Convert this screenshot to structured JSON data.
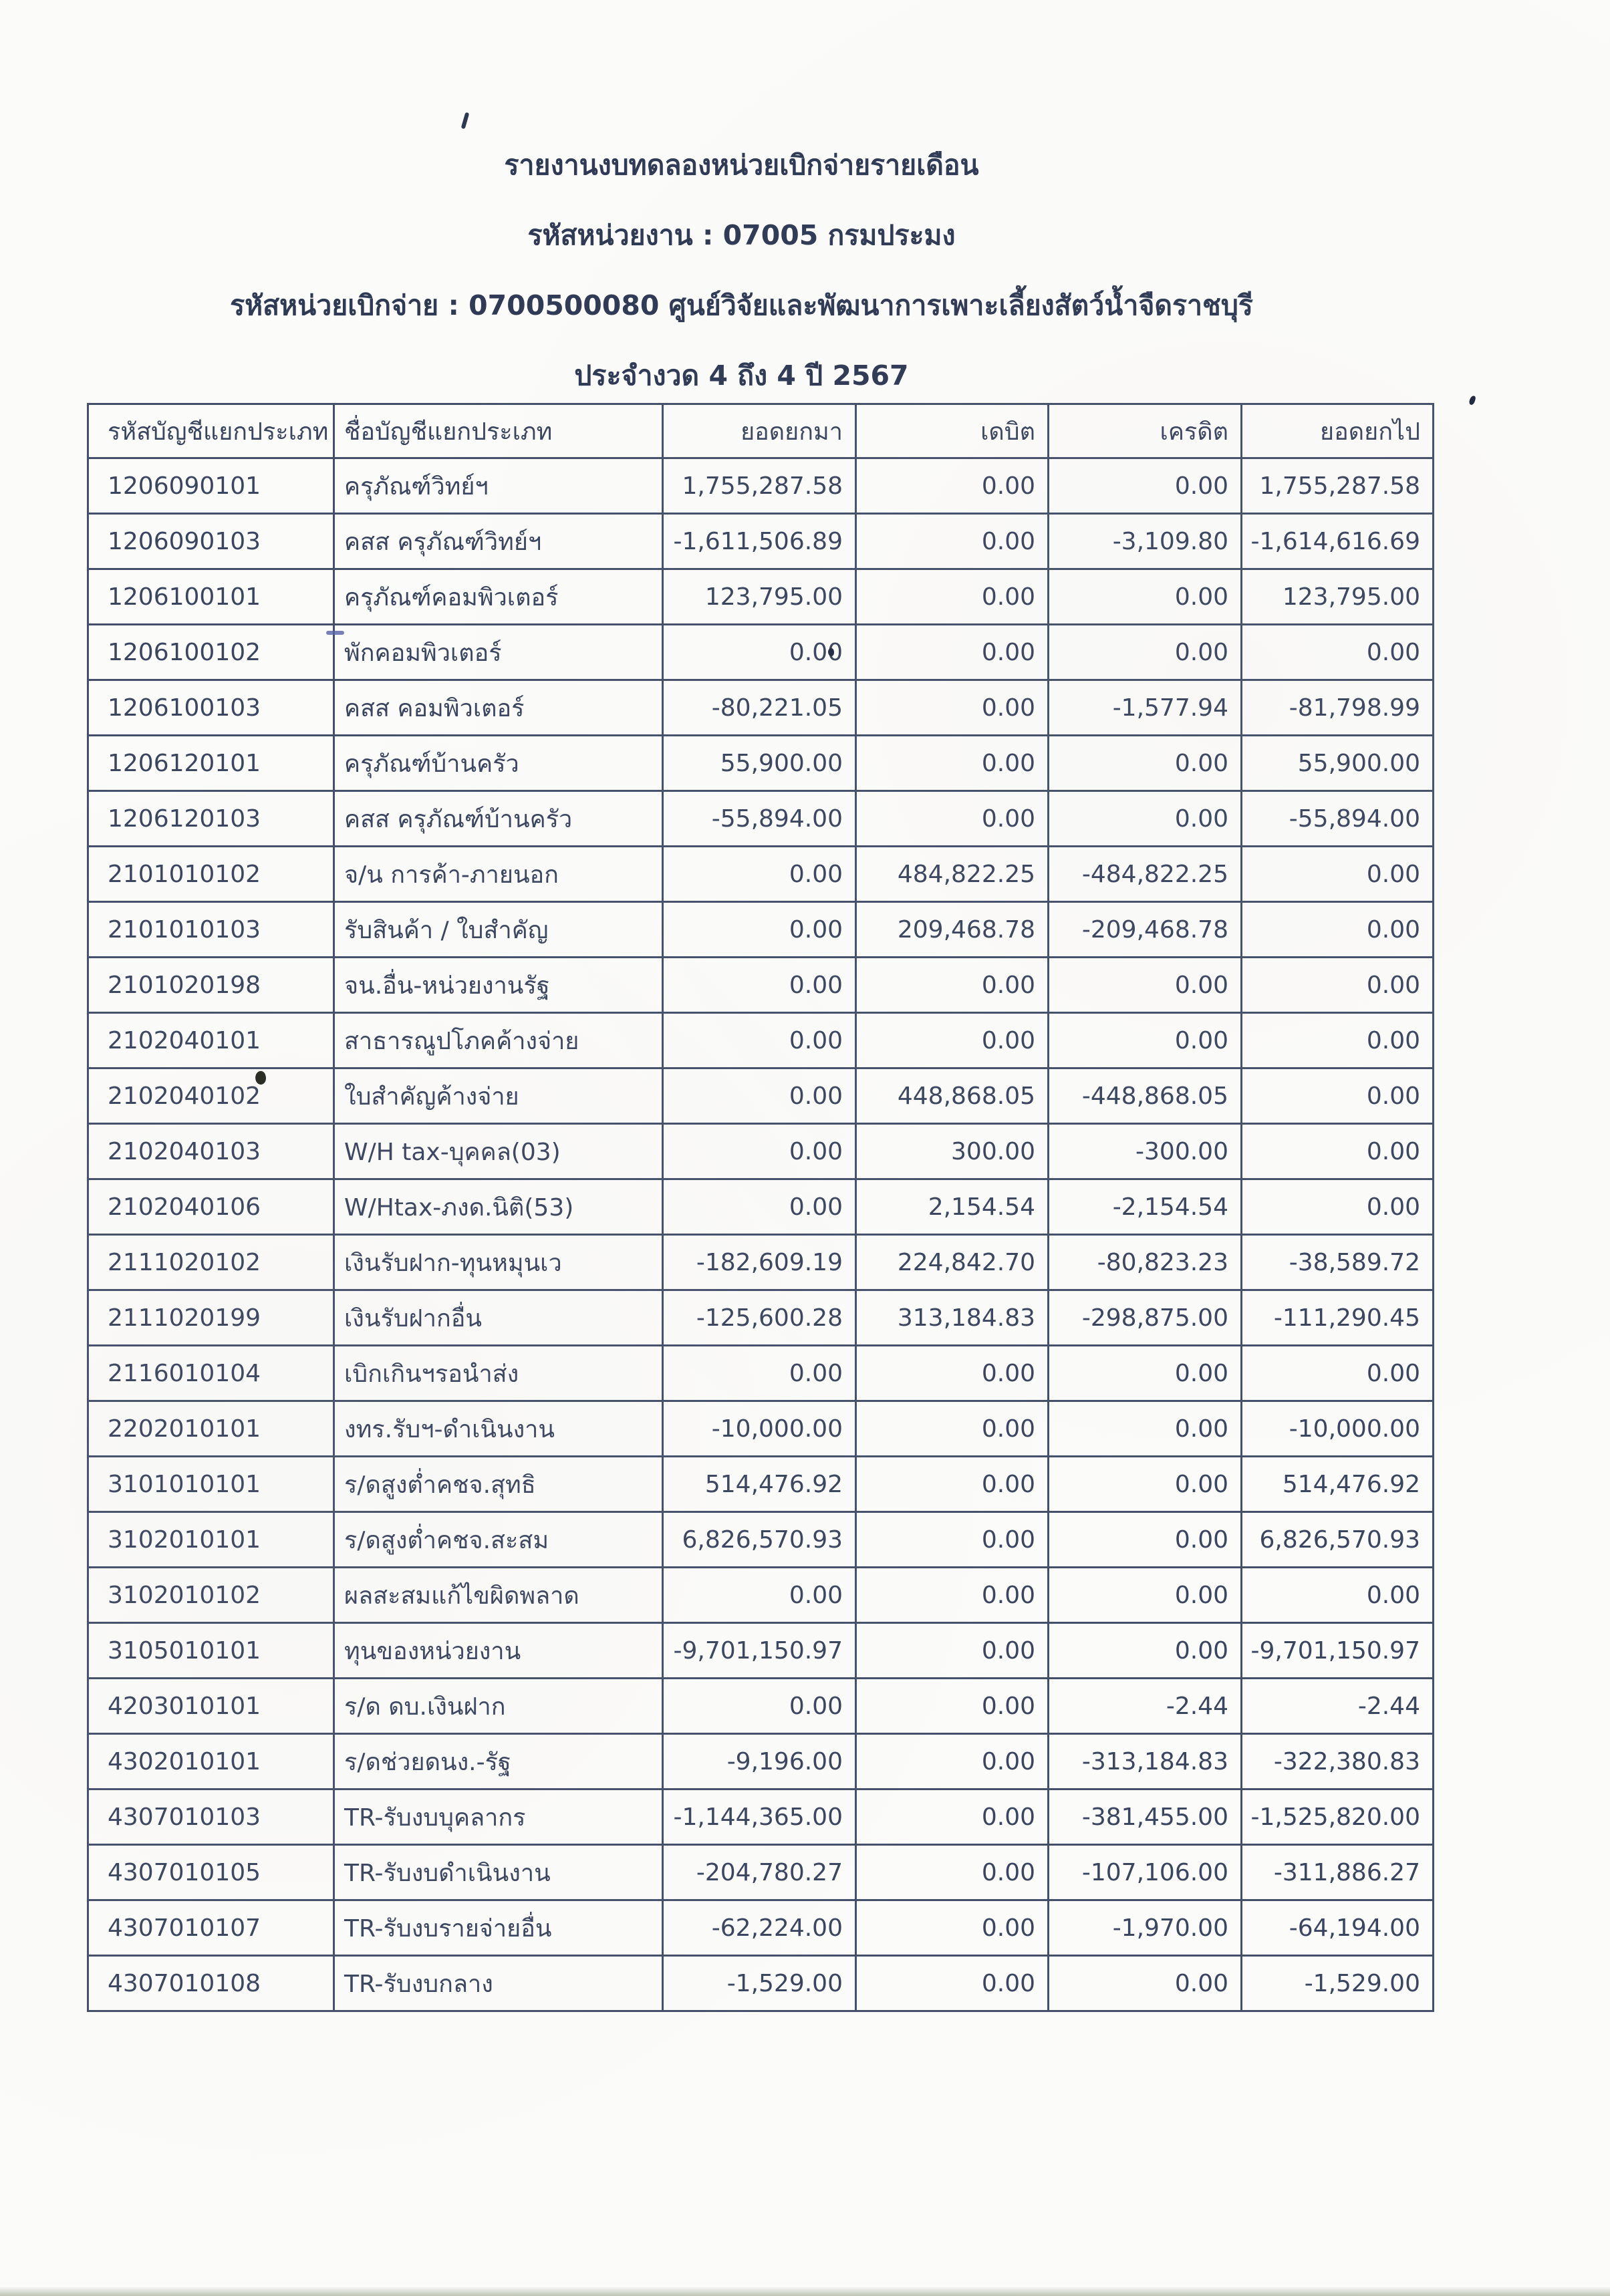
{
  "page": {
    "report_title": "รายงานงบทดลองหน่วยเบิกจ่ายรายเดือน",
    "agency_line": "รหัสหน่วยงาน : 07005 กรมประมง",
    "unit_line": "รหัสหน่วยเบิกจ่าย : 0700500080 ศูนย์วิจัยและพัฒนาการเพาะเลี้ยงสัตว์น้ำจืดราชบุรี",
    "period_line": "ประจำงวด 4 ถึง 4 ปี 2567"
  },
  "table": {
    "headers": [
      "รหัสบัญชีแยกประเภท",
      "ชื่อบัญชีแยกประเภท",
      "ยอดยกมา",
      "เดบิต",
      "เครดิต",
      "ยอดยกไป"
    ],
    "rows": [
      {
        "code": "1206090101",
        "name": "ครุภัณฑ์วิทย์ฯ",
        "brought_forward": "1,755,287.58",
        "debit": "0.00",
        "credit": "0.00",
        "carried_forward": "1,755,287.58"
      },
      {
        "code": "1206090103",
        "name": "คสส ครุภัณฑ์วิทย์ฯ",
        "brought_forward": "-1,611,506.89",
        "debit": "0.00",
        "credit": "-3,109.80",
        "carried_forward": "-1,614,616.69"
      },
      {
        "code": "1206100101",
        "name": "ครุภัณฑ์คอมพิวเตอร์",
        "brought_forward": "123,795.00",
        "debit": "0.00",
        "credit": "0.00",
        "carried_forward": "123,795.00"
      },
      {
        "code": "1206100102",
        "name": "พักคอมพิวเตอร์",
        "brought_forward": "0.00",
        "debit": "0.00",
        "credit": "0.00",
        "carried_forward": "0.00"
      },
      {
        "code": "1206100103",
        "name": "คสส คอมพิวเตอร์",
        "brought_forward": "-80,221.05",
        "debit": "0.00",
        "credit": "-1,577.94",
        "carried_forward": "-81,798.99"
      },
      {
        "code": "1206120101",
        "name": "ครุภัณฑ์บ้านครัว",
        "brought_forward": "55,900.00",
        "debit": "0.00",
        "credit": "0.00",
        "carried_forward": "55,900.00"
      },
      {
        "code": "1206120103",
        "name": "คสส ครุภัณฑ์บ้านครัว",
        "brought_forward": "-55,894.00",
        "debit": "0.00",
        "credit": "0.00",
        "carried_forward": "-55,894.00"
      },
      {
        "code": "2101010102",
        "name": "จ/น การค้า-ภายนอก",
        "brought_forward": "0.00",
        "debit": "484,822.25",
        "credit": "-484,822.25",
        "carried_forward": "0.00"
      },
      {
        "code": "2101010103",
        "name": "รับสินค้า / ใบสำคัญ",
        "brought_forward": "0.00",
        "debit": "209,468.78",
        "credit": "-209,468.78",
        "carried_forward": "0.00"
      },
      {
        "code": "2101020198",
        "name": "จน.อื่น-หน่วยงานรัฐ",
        "brought_forward": "0.00",
        "debit": "0.00",
        "credit": "0.00",
        "carried_forward": "0.00"
      },
      {
        "code": "2102040101",
        "name": "สาธารณูปโภคค้างจ่าย",
        "brought_forward": "0.00",
        "debit": "0.00",
        "credit": "0.00",
        "carried_forward": "0.00"
      },
      {
        "code": "2102040102",
        "name": "ใบสำคัญค้างจ่าย",
        "brought_forward": "0.00",
        "debit": "448,868.05",
        "credit": "-448,868.05",
        "carried_forward": "0.00"
      },
      {
        "code": "2102040103",
        "name": "W/H tax-บุคคล(03)",
        "brought_forward": "0.00",
        "debit": "300.00",
        "credit": "-300.00",
        "carried_forward": "0.00"
      },
      {
        "code": "2102040106",
        "name": "W/Htax-ภงด.นิติ(53)",
        "brought_forward": "0.00",
        "debit": "2,154.54",
        "credit": "-2,154.54",
        "carried_forward": "0.00"
      },
      {
        "code": "2111020102",
        "name": "เงินรับฝาก-ทุนหมุนเว",
        "brought_forward": "-182,609.19",
        "debit": "224,842.70",
        "credit": "-80,823.23",
        "carried_forward": "-38,589.72"
      },
      {
        "code": "2111020199",
        "name": "เงินรับฝากอื่น",
        "brought_forward": "-125,600.28",
        "debit": "313,184.83",
        "credit": "-298,875.00",
        "carried_forward": "-111,290.45"
      },
      {
        "code": "2116010104",
        "name": "เบิกเกินฯรอนำส่ง",
        "brought_forward": "0.00",
        "debit": "0.00",
        "credit": "0.00",
        "carried_forward": "0.00"
      },
      {
        "code": "2202010101",
        "name": "งทร.รับฯ-ดำเนินงาน",
        "brought_forward": "-10,000.00",
        "debit": "0.00",
        "credit": "0.00",
        "carried_forward": "-10,000.00"
      },
      {
        "code": "3101010101",
        "name": "ร/ดสูงต่ำคชจ.สุทธิ",
        "brought_forward": "514,476.92",
        "debit": "0.00",
        "credit": "0.00",
        "carried_forward": "514,476.92"
      },
      {
        "code": "3102010101",
        "name": "ร/ดสูงต่ำคชจ.สะสม",
        "brought_forward": "6,826,570.93",
        "debit": "0.00",
        "credit": "0.00",
        "carried_forward": "6,826,570.93"
      },
      {
        "code": "3102010102",
        "name": "ผลสะสมแก้ไขผิดพลาด",
        "brought_forward": "0.00",
        "debit": "0.00",
        "credit": "0.00",
        "carried_forward": "0.00"
      },
      {
        "code": "3105010101",
        "name": "ทุนของหน่วยงาน",
        "brought_forward": "-9,701,150.97",
        "debit": "0.00",
        "credit": "0.00",
        "carried_forward": "-9,701,150.97"
      },
      {
        "code": "4203010101",
        "name": "ร/ด ดบ.เงินฝาก",
        "brought_forward": "0.00",
        "debit": "0.00",
        "credit": "-2.44",
        "carried_forward": "-2.44"
      },
      {
        "code": "4302010101",
        "name": "ร/ดช่วยดนง.-รัฐ",
        "brought_forward": "-9,196.00",
        "debit": "0.00",
        "credit": "-313,184.83",
        "carried_forward": "-322,380.83"
      },
      {
        "code": "4307010103",
        "name": "TR-รับงบบุคลากร",
        "brought_forward": "-1,144,365.00",
        "debit": "0.00",
        "credit": "-381,455.00",
        "carried_forward": "-1,525,820.00"
      },
      {
        "code": "4307010105",
        "name": "TR-รับงบดำเนินงาน",
        "brought_forward": "-204,780.27",
        "debit": "0.00",
        "credit": "-107,106.00",
        "carried_forward": "-311,886.27"
      },
      {
        "code": "4307010107",
        "name": "TR-รับงบรายจ่ายอื่น",
        "brought_forward": "-62,224.00",
        "debit": "0.00",
        "credit": "-1,970.00",
        "carried_forward": "-64,194.00"
      },
      {
        "code": "4307010108",
        "name": "TR-รับงบกลาง",
        "brought_forward": "-1,529.00",
        "debit": "0.00",
        "credit": "0.00",
        "carried_forward": "-1,529.00"
      }
    ]
  },
  "colors": {
    "ink": "#3a455f",
    "title_ink": "#2f3a55",
    "border": "#44506a",
    "paper": "#fbfbf9"
  }
}
